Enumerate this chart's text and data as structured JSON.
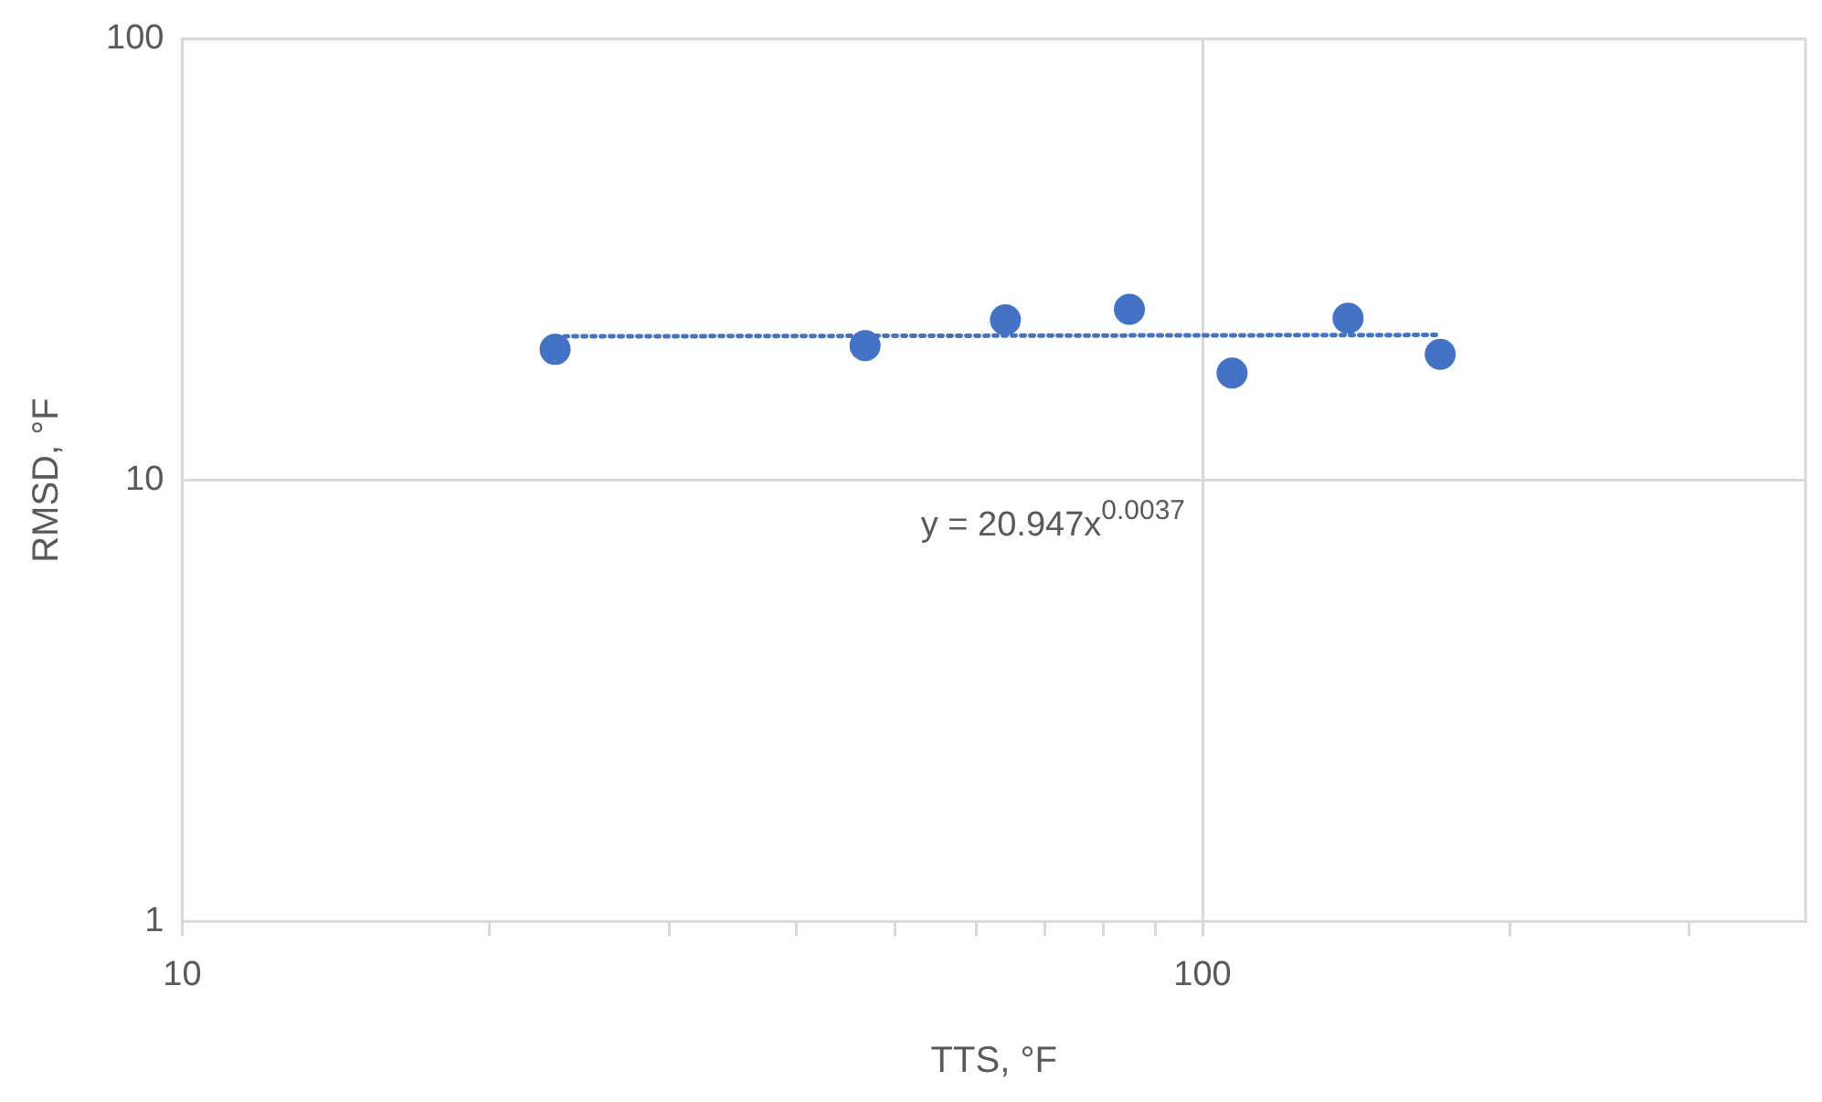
{
  "chart_data": {
    "type": "scatter",
    "xlabel": "TTS, °F",
    "ylabel": "RMSD, °F",
    "series": [
      {
        "type": "scatter",
        "color": "#4472c4",
        "x": [
          23.2,
          46.7,
          64.1,
          84.8,
          106.9,
          138.9,
          171
        ],
        "values": [
          19.8,
          20.2,
          23.1,
          24.4,
          17.5,
          23.3,
          19.3
        ],
        "marker": "circle"
      },
      {
        "type": "line",
        "color": "#4472c4",
        "x": [
          23.2,
          171
        ],
        "values": [
          21.19,
          21.35
        ],
        "line_style": "dotted",
        "marker": "none"
      }
    ],
    "log": "xy",
    "xlim": [
      10,
      390
    ],
    "ylim": [
      1,
      100
    ],
    "xticks": [
      10,
      {
        "value": 20,
        "label": null
      },
      {
        "value": 30,
        "label": null
      },
      {
        "value": 40,
        "label": null
      },
      {
        "value": 50,
        "label": null
      },
      {
        "value": 60,
        "label": null
      },
      {
        "value": 70,
        "label": null
      },
      {
        "value": 80,
        "label": null
      },
      {
        "value": 90,
        "label": null
      },
      100,
      {
        "value": 200,
        "label": null
      },
      {
        "value": 300,
        "label": null
      }
    ],
    "yticks": [
      1,
      10,
      100
    ],
    "grid": true,
    "legend": false,
    "annotations": [
      "y = 20.947x$^{0.0037}$"
    ]
  }
}
